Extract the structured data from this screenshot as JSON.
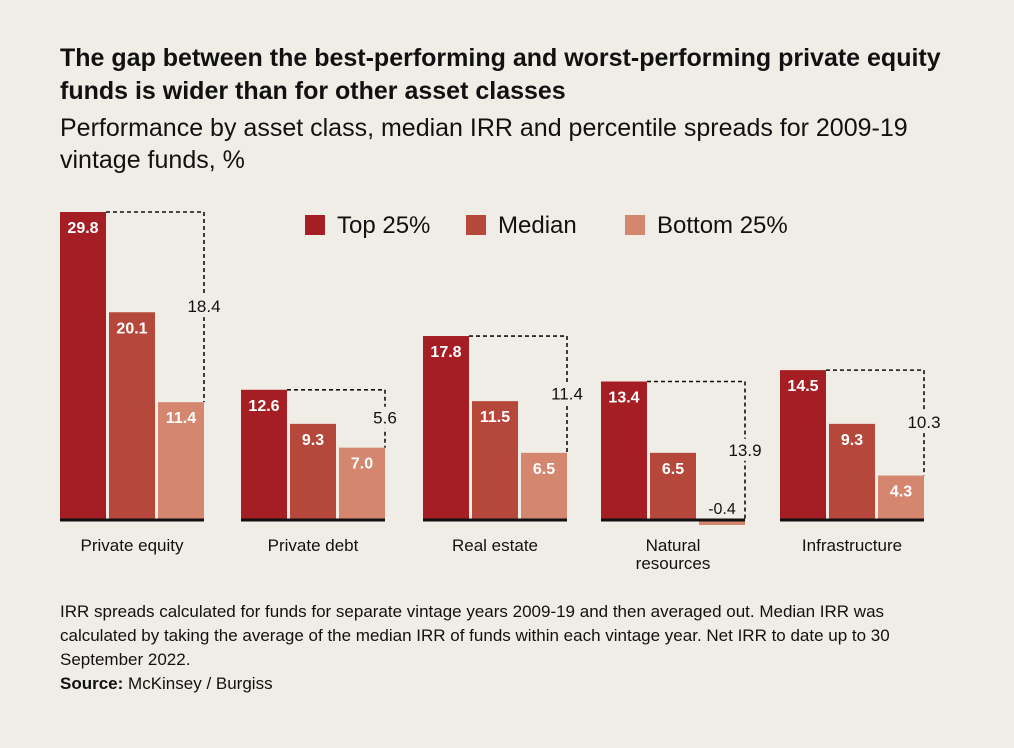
{
  "title": "The gap between the best-performing and worst-performing private equity funds is wider than for other asset classes",
  "subtitle": "Performance by asset class, median IRR and percentile spreads for 2009-19 vintage funds, %",
  "footnote": "IRR spreads calculated for funds for separate vintage years 2009-19 and then averaged out. Median IRR was calculated by taking the average of the median IRR of funds within each vintage year. Net IRR to date up to 30 September 2022.",
  "source": {
    "label": "Source:",
    "text": "McKinsey / Burgiss"
  },
  "chart_data": {
    "type": "bar",
    "categories": [
      "Private equity",
      "Private debt",
      "Real estate",
      "Natural resources",
      "Infrastructure"
    ],
    "series": [
      {
        "name": "Top 25%",
        "values": [
          29.8,
          12.6,
          17.8,
          13.4,
          14.5
        ],
        "color": "#a51e24"
      },
      {
        "name": "Median",
        "values": [
          20.1,
          9.3,
          11.5,
          6.5,
          9.3
        ],
        "color": "#b5473b"
      },
      {
        "name": "Bottom 25%",
        "values": [
          11.4,
          7.0,
          6.5,
          -0.4,
          4.3
        ],
        "color": "#d4866f"
      }
    ],
    "spreads": [
      18.4,
      5.6,
      11.4,
      13.9,
      10.3
    ],
    "ylim": [
      -0.4,
      29.8
    ],
    "legend": "top-right",
    "grid": false
  }
}
